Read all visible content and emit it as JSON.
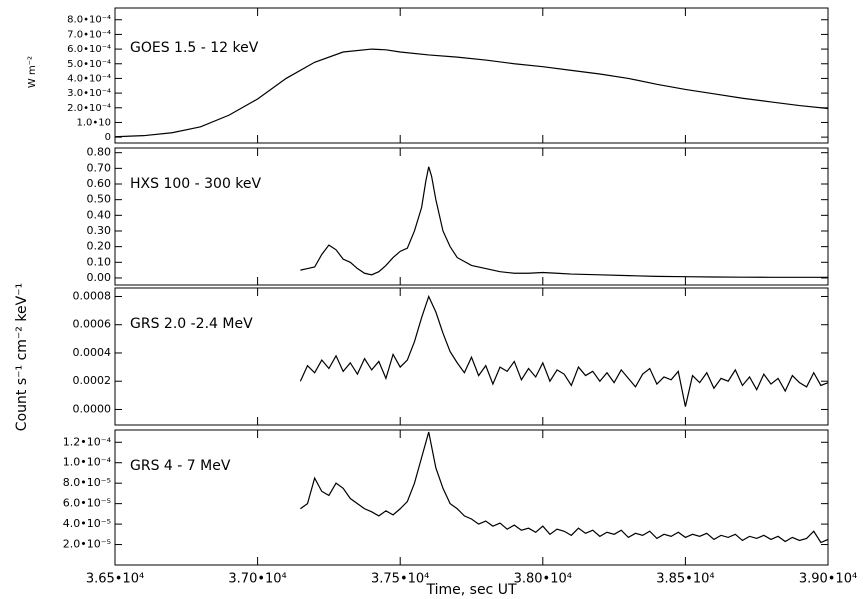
{
  "chart_data": [
    {
      "type": "line",
      "title": "GOES 1.5 - 12 keV",
      "ylabel": "W m⁻²",
      "color": "#000000",
      "xlim": [
        36500,
        39000
      ],
      "ylim": [
        -4e-05,
        0.00088
      ],
      "yticks": [
        0,
        {
          "value": 0.0001,
          "label": "1.0•10"
        },
        {
          "value": 0.0002,
          "label": "2.0•10⁻⁴"
        },
        {
          "value": 0.0003,
          "label": "3.0•10⁻⁴"
        },
        {
          "value": 0.0004,
          "label": "4.0•10⁻⁴"
        },
        {
          "value": 0.0005,
          "label": "5.0•10⁻⁴"
        },
        {
          "value": 0.0006,
          "label": "6.0•10⁻⁴"
        },
        {
          "value": 0.0007,
          "label": "7.0•10⁻⁴"
        },
        {
          "value": 0.0008,
          "label": "8.0•10⁻⁴"
        }
      ],
      "x": [
        36500,
        36600,
        36700,
        36800,
        36900,
        37000,
        37100,
        37200,
        37300,
        37400,
        37450,
        37500,
        37600,
        37700,
        37800,
        37900,
        38000,
        38100,
        38200,
        38300,
        38400,
        38500,
        38600,
        38700,
        38800,
        38900,
        39000
      ],
      "values": [
        3e-06,
        1e-05,
        3e-05,
        7e-05,
        0.00015,
        0.00026,
        0.0004,
        0.00051,
        0.00058,
        0.0006,
        0.000595,
        0.00058,
        0.00056,
        0.000545,
        0.000525,
        0.0005,
        0.00048,
        0.000455,
        0.00043,
        0.0004,
        0.00036,
        0.000325,
        0.000295,
        0.000265,
        0.00024,
        0.000215,
        0.000195
      ]
    },
    {
      "type": "line",
      "title": "HXS 100 - 300 keV",
      "color": "#000000",
      "xlim": [
        36500,
        39000
      ],
      "ylim": [
        -0.045,
        0.83
      ],
      "yticks": [
        {
          "value": 0,
          "label": "0.00"
        },
        {
          "value": 0.1,
          "label": "0.10"
        },
        {
          "value": 0.2,
          "label": "0.20"
        },
        {
          "value": 0.3,
          "label": "0.30"
        },
        {
          "value": 0.4,
          "label": "0.40"
        },
        {
          "value": 0.5,
          "label": "0.50"
        },
        {
          "value": 0.6,
          "label": "0.60"
        },
        {
          "value": 0.7,
          "label": "0.70"
        },
        {
          "value": 0.8,
          "label": "0.80"
        }
      ],
      "x": [
        37150,
        37175,
        37200,
        37225,
        37250,
        37275,
        37300,
        37325,
        37350,
        37375,
        37400,
        37425,
        37450,
        37475,
        37500,
        37525,
        37550,
        37575,
        37590,
        37600,
        37610,
        37625,
        37650,
        37675,
        37700,
        37750,
        37800,
        37850,
        37900,
        37950,
        38000,
        38050,
        38100,
        38200,
        38300,
        38400,
        38500,
        38600,
        38700,
        38800,
        38900,
        39000
      ],
      "values": [
        0.05,
        0.06,
        0.07,
        0.15,
        0.21,
        0.18,
        0.12,
        0.1,
        0.06,
        0.03,
        0.02,
        0.04,
        0.08,
        0.13,
        0.17,
        0.19,
        0.3,
        0.45,
        0.62,
        0.71,
        0.65,
        0.5,
        0.3,
        0.2,
        0.13,
        0.08,
        0.06,
        0.04,
        0.03,
        0.03,
        0.035,
        0.03,
        0.025,
        0.02,
        0.015,
        0.01,
        0.008,
        0.006,
        0.005,
        0.004,
        0.004,
        0.004
      ]
    },
    {
      "type": "line",
      "title": "GRS 2.0 -2.4 MeV",
      "ylabel": "Count s⁻¹ cm⁻² keV⁻¹",
      "color": "#000000",
      "xlim": [
        36500,
        39000
      ],
      "ylim": [
        -0.00011,
        0.00086
      ],
      "yticks": [
        {
          "value": 0,
          "label": "0.0000"
        },
        {
          "value": 0.0002,
          "label": "0.0002"
        },
        {
          "value": 0.0004,
          "label": "0.0004"
        },
        {
          "value": 0.0006,
          "label": "0.0006"
        },
        {
          "value": 0.0008,
          "label": "0.0008"
        }
      ],
      "x": [
        37150,
        37175,
        37200,
        37225,
        37250,
        37275,
        37300,
        37325,
        37350,
        37375,
        37400,
        37425,
        37450,
        37475,
        37500,
        37525,
        37550,
        37575,
        37600,
        37625,
        37650,
        37675,
        37700,
        37725,
        37750,
        37775,
        37800,
        37825,
        37850,
        37875,
        37900,
        37925,
        37950,
        37975,
        38000,
        38025,
        38050,
        38075,
        38100,
        38125,
        38150,
        38175,
        38200,
        38225,
        38250,
        38275,
        38300,
        38325,
        38350,
        38375,
        38400,
        38425,
        38450,
        38475,
        38500,
        38525,
        38550,
        38575,
        38600,
        38625,
        38650,
        38675,
        38700,
        38725,
        38750,
        38775,
        38800,
        38825,
        38850,
        38875,
        38900,
        38925,
        38950,
        38975,
        39000
      ],
      "values": [
        0.0002,
        0.00031,
        0.00026,
        0.00035,
        0.00029,
        0.00038,
        0.00027,
        0.00033,
        0.00025,
        0.00036,
        0.00028,
        0.00034,
        0.00022,
        0.00039,
        0.0003,
        0.00035,
        0.00048,
        0.00065,
        0.0008,
        0.00069,
        0.00054,
        0.00041,
        0.00033,
        0.00026,
        0.00037,
        0.00024,
        0.00031,
        0.00018,
        0.0003,
        0.00027,
        0.00034,
        0.00021,
        0.00029,
        0.00023,
        0.00033,
        0.0002,
        0.00028,
        0.00025,
        0.00017,
        0.0003,
        0.00024,
        0.00027,
        0.0002,
        0.00026,
        0.00019,
        0.00028,
        0.00022,
        0.00016,
        0.00025,
        0.00029,
        0.00018,
        0.00023,
        0.00021,
        0.00027,
        2e-05,
        0.00024,
        0.00019,
        0.00026,
        0.00015,
        0.00022,
        0.0002,
        0.00028,
        0.00017,
        0.00023,
        0.00014,
        0.00025,
        0.00018,
        0.00022,
        0.00013,
        0.00024,
        0.00019,
        0.00016,
        0.00026,
        0.00017,
        0.00019
      ]
    },
    {
      "type": "line",
      "title": "GRS 4 - 7 MeV",
      "xlabel": "Time, sec UT",
      "color": "#000000",
      "xlim": [
        36500,
        39000
      ],
      "ylim": [
        0,
        0.000132
      ],
      "xticks": [
        {
          "value": 36500,
          "label": "3.65•10⁴"
        },
        {
          "value": 37000,
          "label": "3.70•10⁴"
        },
        {
          "value": 37500,
          "label": "3.75•10⁴"
        },
        {
          "value": 38000,
          "label": "3.80•10⁴"
        },
        {
          "value": 38500,
          "label": "3.85•10⁴"
        },
        {
          "value": 39000,
          "label": "3.90•10⁴"
        }
      ],
      "yticks": [
        {
          "value": 2e-05,
          "label": "2.0•10⁻⁵"
        },
        {
          "value": 4e-05,
          "label": "4.0•10⁻⁵"
        },
        {
          "value": 6e-05,
          "label": "6.0•10⁻⁵"
        },
        {
          "value": 8e-05,
          "label": "8.0•10⁻⁵"
        },
        {
          "value": 0.0001,
          "label": "1.0•10⁻⁴"
        },
        {
          "value": 0.00012,
          "label": "1.2•10⁻⁴"
        }
      ],
      "x": [
        37150,
        37175,
        37200,
        37225,
        37250,
        37275,
        37300,
        37325,
        37350,
        37375,
        37400,
        37425,
        37450,
        37475,
        37500,
        37525,
        37550,
        37575,
        37600,
        37625,
        37650,
        37675,
        37700,
        37725,
        37750,
        37775,
        37800,
        37825,
        37850,
        37875,
        37900,
        37925,
        37950,
        37975,
        38000,
        38025,
        38050,
        38075,
        38100,
        38125,
        38150,
        38175,
        38200,
        38225,
        38250,
        38275,
        38300,
        38325,
        38350,
        38375,
        38400,
        38425,
        38450,
        38475,
        38500,
        38525,
        38550,
        38575,
        38600,
        38625,
        38650,
        38675,
        38700,
        38725,
        38750,
        38775,
        38800,
        38825,
        38850,
        38875,
        38900,
        38925,
        38950,
        38975,
        39000
      ],
      "values": [
        5.5e-05,
        6e-05,
        8.5e-05,
        7.2e-05,
        6.8e-05,
        8e-05,
        7.5e-05,
        6.5e-05,
        6e-05,
        5.5e-05,
        5.2e-05,
        4.8e-05,
        5.3e-05,
        4.9e-05,
        5.5e-05,
        6.2e-05,
        8e-05,
        0.000105,
        0.00013,
        9.5e-05,
        7.5e-05,
        6e-05,
        5.5e-05,
        4.8e-05,
        4.5e-05,
        4e-05,
        4.3e-05,
        3.8e-05,
        4.1e-05,
        3.5e-05,
        3.9e-05,
        3.4e-05,
        3.6e-05,
        3.2e-05,
        3.8e-05,
        3e-05,
        3.5e-05,
        3.3e-05,
        2.9e-05,
        3.6e-05,
        3.1e-05,
        3.4e-05,
        2.8e-05,
        3.2e-05,
        3e-05,
        3.4e-05,
        2.7e-05,
        3.1e-05,
        2.9e-05,
        3.3e-05,
        2.6e-05,
        3e-05,
        2.8e-05,
        3.2e-05,
        2.7e-05,
        3e-05,
        2.8e-05,
        3.1e-05,
        2.5e-05,
        2.9e-05,
        2.7e-05,
        3e-05,
        2.4e-05,
        2.8e-05,
        2.6e-05,
        2.9e-05,
        2.5e-05,
        2.8e-05,
        2.3e-05,
        2.7e-05,
        2.4e-05,
        2.6e-05,
        3.3e-05,
        2.2e-05,
        2.5e-05
      ]
    }
  ]
}
